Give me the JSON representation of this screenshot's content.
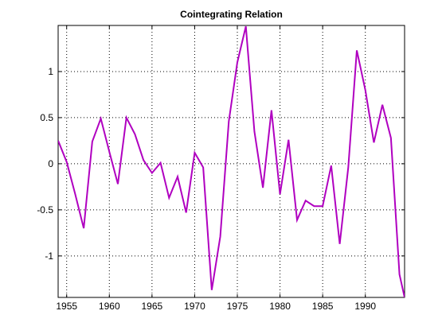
{
  "chart_data": {
    "type": "line",
    "title": "Cointegrating Relation",
    "xlabel": "",
    "ylabel": "",
    "xlim": [
      1954,
      1994.6
    ],
    "ylim": [
      -1.45,
      1.5
    ],
    "grid": true,
    "x_ticks": [
      1955,
      1960,
      1965,
      1970,
      1975,
      1980,
      1985,
      1990
    ],
    "x_tick_labels": [
      "1955",
      "1960",
      "1965",
      "1970",
      "1975",
      "1980",
      "1985",
      "1990"
    ],
    "y_ticks": [
      1,
      0.5,
      0,
      -0.5,
      -1
    ],
    "y_tick_labels": [
      "1",
      "0.5",
      "0",
      "-0.5",
      "-1"
    ],
    "series": [
      {
        "color": "#b000c0",
        "x": [
          1954,
          1955,
          1956,
          1957,
          1958,
          1959,
          1960,
          1961,
          1962,
          1963,
          1964,
          1965,
          1966,
          1967,
          1968,
          1969,
          1970,
          1971,
          1972,
          1973,
          1974,
          1975,
          1976,
          1977,
          1978,
          1979,
          1980,
          1981,
          1982,
          1983,
          1984,
          1985,
          1986,
          1987,
          1988,
          1989,
          1990,
          1991,
          1992,
          1993,
          1994,
          1994.6
        ],
        "y": [
          0.25,
          0.02,
          -0.33,
          -0.7,
          0.24,
          0.49,
          0.13,
          -0.22,
          0.5,
          0.32,
          0.04,
          -0.1,
          0.01,
          -0.37,
          -0.14,
          -0.53,
          0.12,
          -0.04,
          -1.37,
          -0.79,
          0.46,
          1.1,
          1.49,
          0.35,
          -0.26,
          0.58,
          -0.33,
          0.26,
          -0.61,
          -0.4,
          -0.46,
          -0.46,
          -0.02,
          -0.87,
          -0.04,
          1.23,
          0.8,
          0.23,
          0.64,
          0.28,
          -1.2,
          -1.45
        ]
      }
    ]
  }
}
